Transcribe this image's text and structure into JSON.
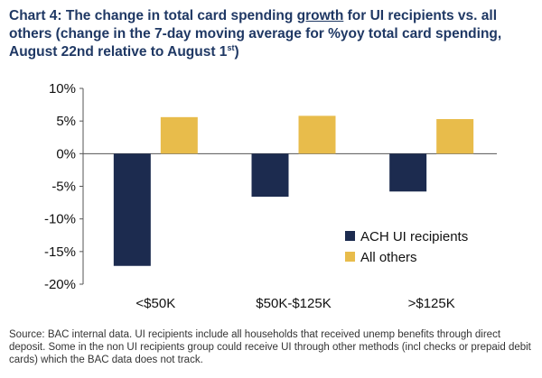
{
  "chart_data": {
    "type": "bar",
    "title_parts": {
      "before": "Chart 4: The change in total card spending ",
      "underlined": "growth",
      "after": " for UI recipients vs. all others (change in the 7-day moving average for %yoy total card spending, August 22nd relative to August 1",
      "superscript": "st",
      "end": ")"
    },
    "categories": [
      "<$50K",
      "$50K-$125K",
      ">$125K"
    ],
    "series": [
      {
        "name": "ACH UI recipients",
        "color": "#1c2b4f",
        "values": [
          -17.2,
          -6.6,
          -5.8
        ]
      },
      {
        "name": "All others",
        "color": "#e8bc4b",
        "values": [
          5.6,
          5.8,
          5.3
        ]
      }
    ],
    "ylim": [
      -20,
      10
    ],
    "yticks": [
      10,
      5,
      0,
      -5,
      -10,
      -15,
      -20
    ],
    "ytick_labels": [
      "10%",
      "5%",
      "0%",
      "-5%",
      "-10%",
      "-15%",
      "-20%"
    ],
    "xlabel": "",
    "ylabel": "",
    "legend_position": "lower-right",
    "grid": false
  },
  "source": "Source: BAC internal data. UI recipients include all households that received unemp benefits through direct deposit. Some in the non UI recipients group could receive UI through other methods (incl checks or prepaid debit cards) which the BAC data does not track."
}
